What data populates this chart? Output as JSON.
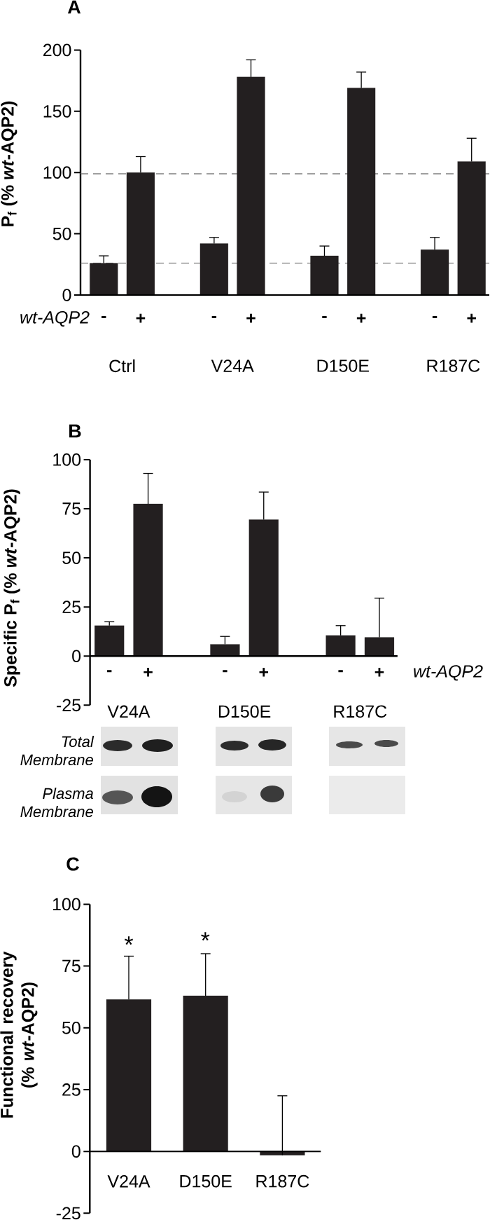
{
  "chart_data": [
    {
      "type": "bar",
      "title": "A",
      "ylabel": "P$_{f}$ (% *wt*-AQP2)",
      "legend_title": "wt-AQP2",
      "categories": [
        "Ctrl",
        "V24A",
        "D150E",
        "R187C"
      ],
      "series": [
        {
          "name": "-",
          "color": "#231f20",
          "values": [
            26,
            42,
            32,
            37
          ],
          "errors": [
            [
              26,
              32
            ],
            [
              42,
              47
            ],
            [
              32,
              40
            ],
            [
              37,
              47
            ]
          ]
        },
        {
          "name": "+",
          "color": "#231f20",
          "values": [
            100,
            178,
            169,
            109
          ],
          "errors": [
            [
              100,
              113
            ],
            [
              178,
              192
            ],
            [
              169,
              182
            ],
            [
              109,
              128
            ]
          ]
        }
      ],
      "ylim": [
        0,
        200
      ],
      "yticks": [
        0,
        50,
        100,
        150,
        200
      ],
      "ref_lines": [
        {
          "axis": "y",
          "value": 99,
          "color": "#808080",
          "line_style": "dashed"
        },
        {
          "axis": "y",
          "value": 26,
          "color": "#808080",
          "line_style": "dashed"
        }
      ]
    },
    {
      "type": "bar",
      "title": "B",
      "ylabel": "Specific P$_{f}$ (% *wt*-AQP2)",
      "legend_title": "wt-AQP2",
      "categories": [
        "V24A",
        "D150E",
        "R187C"
      ],
      "series": [
        {
          "name": "-",
          "color": "#231f20",
          "values": [
            15.5,
            6,
            10.5
          ],
          "errors": [
            [
              15.5,
              17.5
            ],
            [
              6,
              10
            ],
            [
              10.5,
              15.5
            ]
          ]
        },
        {
          "name": "+",
          "color": "#231f20",
          "values": [
            77.5,
            69.5,
            9.5
          ],
          "errors": [
            [
              77.5,
              93
            ],
            [
              69.5,
              83.5
            ],
            [
              9.5,
              29.5
            ]
          ]
        }
      ],
      "ylim": [
        -25,
        100
      ],
      "yticks": [
        -25,
        0,
        25,
        50,
        75,
        100
      ],
      "annotations": [
        "Total Membrane",
        "Plasma Membrane"
      ]
    },
    {
      "type": "bar",
      "title": "C",
      "ylabel": "Functional recovery (% *wt*-AQP2)",
      "categories": [
        "V24A",
        "D150E",
        "R187C"
      ],
      "values": [
        61.5,
        63,
        -1.5
      ],
      "errors": [
        [
          61.5,
          79
        ],
        [
          63,
          80
        ],
        [
          -1.5,
          22.5
        ]
      ],
      "color": "#231f20",
      "ylim": [
        -25,
        100
      ],
      "yticks": [
        -25,
        0,
        25,
        50,
        75,
        100
      ],
      "annotations": [
        "*",
        "*"
      ]
    }
  ]
}
